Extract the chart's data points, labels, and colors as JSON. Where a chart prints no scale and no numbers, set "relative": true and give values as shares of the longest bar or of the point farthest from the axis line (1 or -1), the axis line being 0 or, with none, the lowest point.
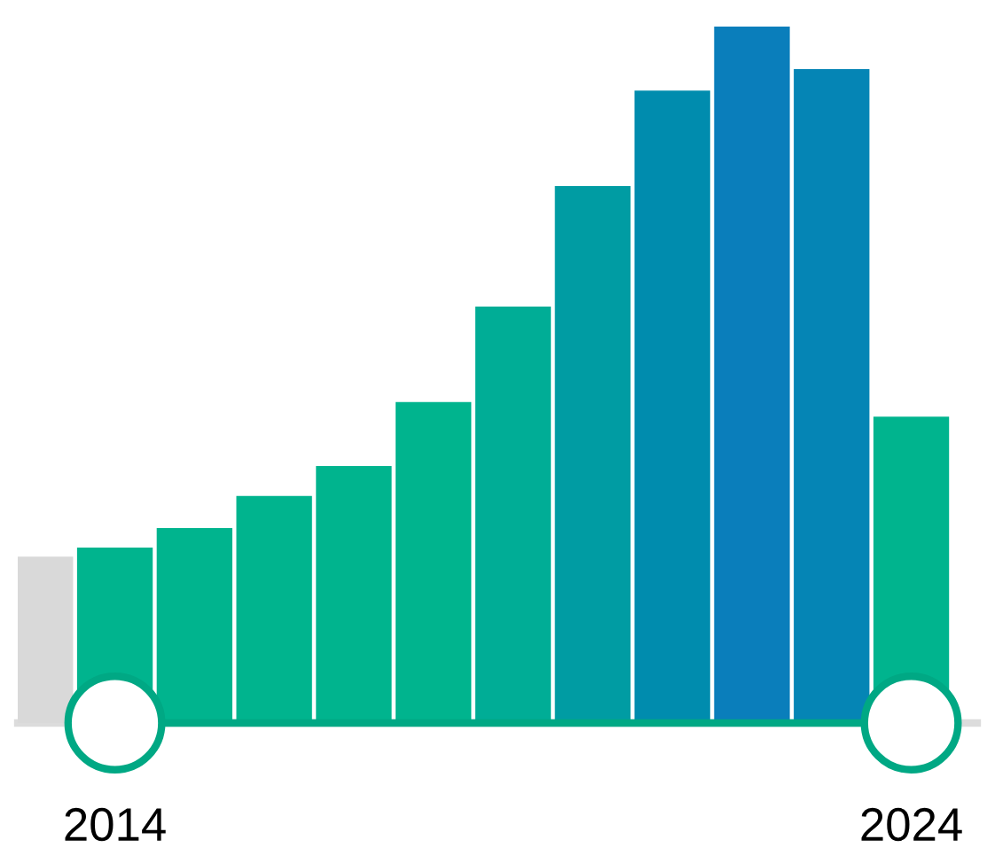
{
  "chart_data": {
    "type": "bar",
    "relative": true,
    "tick_labels": "x",
    "grid": false,
    "legend": false,
    "categories": [
      null,
      "2014",
      null,
      null,
      null,
      null,
      null,
      null,
      null,
      null,
      null,
      "2024"
    ],
    "values": [
      0.239,
      0.252,
      0.28,
      0.326,
      0.369,
      0.461,
      0.598,
      0.771,
      0.908,
      1,
      0.939,
      0.44
    ],
    "colors": [
      "#d9d9d9",
      "#00b48e",
      "#00b48e",
      "#00b48e",
      "#00b48e",
      "#00b48e",
      "#00ad96",
      "#009ca3",
      "#008cae",
      "#0a7ebb",
      "#0585b5",
      "#00b48e"
    ]
  }
}
